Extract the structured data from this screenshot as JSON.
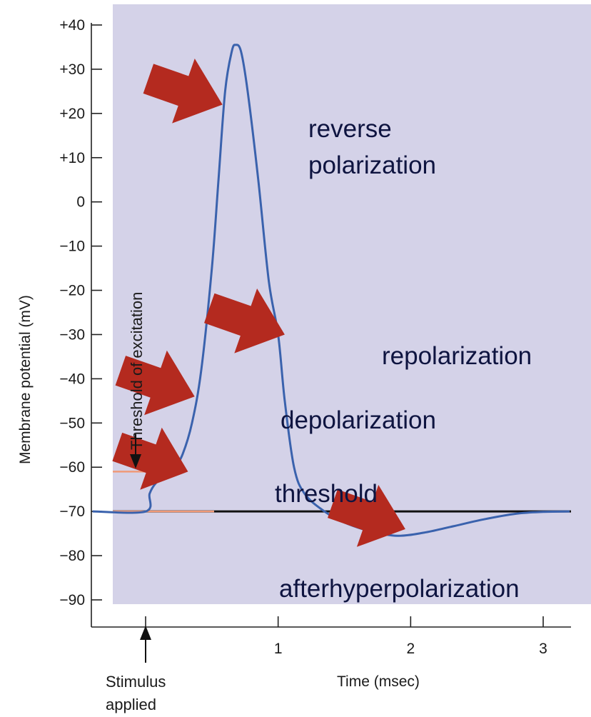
{
  "chart_data": {
    "type": "line",
    "xlabel": "Time (msec)",
    "ylabel": "Membrane potential (mV)",
    "xlim": [
      -0.4,
      3.2
    ],
    "ylim": [
      -90,
      40
    ],
    "x_ticks": [
      {
        "value": 0,
        "label": ""
      },
      {
        "value": 1,
        "label": "1"
      },
      {
        "value": 2,
        "label": "2"
      },
      {
        "value": 3,
        "label": "3"
      }
    ],
    "y_ticks": [
      {
        "value": 40,
        "label": "+40"
      },
      {
        "value": 30,
        "label": "+30"
      },
      {
        "value": 20,
        "label": "+20"
      },
      {
        "value": 10,
        "label": "+10"
      },
      {
        "value": 0,
        "label": "0"
      },
      {
        "value": -10,
        "label": "−10"
      },
      {
        "value": -20,
        "label": "−20"
      },
      {
        "value": -30,
        "label": "−30"
      },
      {
        "value": -40,
        "label": "−40"
      },
      {
        "value": -50,
        "label": "−50"
      },
      {
        "value": -60,
        "label": "−60"
      },
      {
        "value": -70,
        "label": "−70"
      },
      {
        "value": -80,
        "label": "−80"
      },
      {
        "value": -90,
        "label": "−90"
      }
    ],
    "resting_potential": -70,
    "threshold_potential": -61,
    "threshold_label": "Threshold of excitation",
    "stimulus_label_line1": "Stimulus",
    "stimulus_label_line2": "applied",
    "stimulus_time": 0,
    "series": [
      {
        "color": "#3a62ad",
        "points": [
          [
            0.0,
            -70
          ],
          [
            0.03,
            -66
          ],
          [
            0.08,
            -63.5
          ],
          [
            0.15,
            -62
          ],
          [
            0.22,
            -60
          ],
          [
            0.28,
            -57
          ],
          [
            0.35,
            -50
          ],
          [
            0.42,
            -38
          ],
          [
            0.5,
            -15
          ],
          [
            0.55,
            5
          ],
          [
            0.6,
            25
          ],
          [
            0.65,
            34
          ],
          [
            0.68,
            35.5
          ],
          [
            0.72,
            34
          ],
          [
            0.77,
            25
          ],
          [
            0.85,
            5
          ],
          [
            0.93,
            -18
          ],
          [
            1.0,
            -30
          ],
          [
            1.05,
            -45
          ],
          [
            1.12,
            -60
          ],
          [
            1.2,
            -66
          ],
          [
            1.35,
            -70
          ],
          [
            1.5,
            -72.5
          ],
          [
            1.7,
            -74.5
          ],
          [
            1.9,
            -75.5
          ],
          [
            2.1,
            -74.8
          ],
          [
            2.3,
            -73.5
          ],
          [
            2.55,
            -71.8
          ],
          [
            2.8,
            -70.5
          ],
          [
            3.0,
            -70.1
          ],
          [
            3.2,
            -70
          ]
        ]
      }
    ],
    "annotations": [
      {
        "text": "reverse",
        "text2": "polarization",
        "arrow_tip": [
          0.58,
          22
        ]
      },
      {
        "text": "repolarization",
        "arrow_tip": [
          1.05,
          -30
        ]
      },
      {
        "text": "depolarization",
        "arrow_tip": [
          0.37,
          -44
        ]
      },
      {
        "text": "threshold",
        "arrow_tip": [
          0.32,
          -61
        ]
      },
      {
        "text": "afterhyperpolarization",
        "arrow_tip": [
          1.96,
          -74
        ]
      }
    ],
    "colors": {
      "plot_background": "#d4d2e8",
      "curve": "#3a62ad",
      "threshold_line": "#f09a78",
      "baseline": "#111111",
      "arrow": "#b42a1f",
      "annotation_text": "#0e1440"
    }
  }
}
